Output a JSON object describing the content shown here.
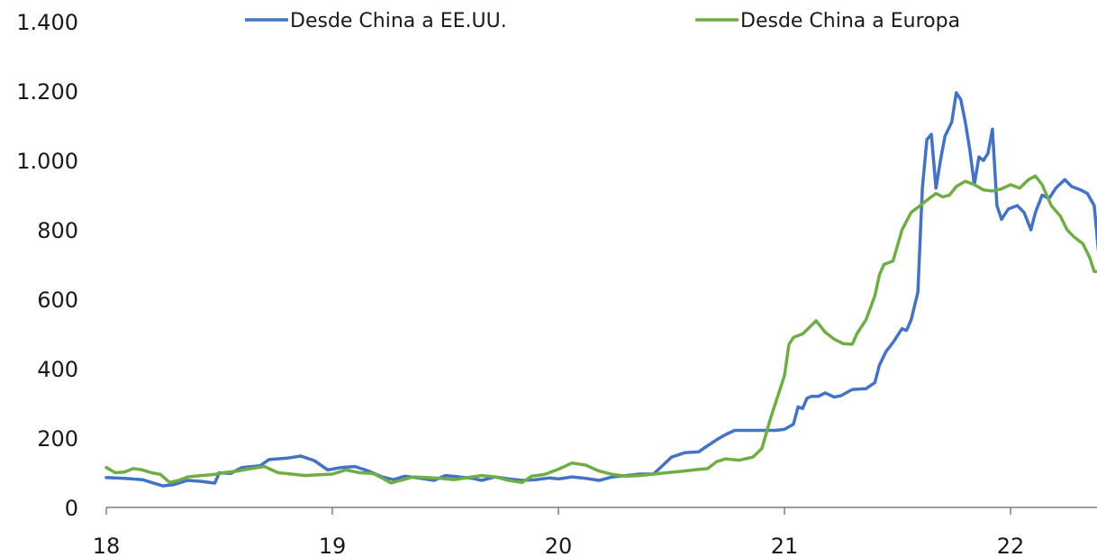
{
  "chart_data": {
    "type": "line",
    "title": "",
    "xlabel": "",
    "ylabel": "",
    "xlim": [
      18,
      22.4
    ],
    "ylim": [
      0,
      1400
    ],
    "x_ticks": [
      18,
      19,
      20,
      21,
      22
    ],
    "x_tick_labels": [
      "18",
      "19",
      "20",
      "21",
      "22"
    ],
    "y_ticks": [
      0,
      200,
      400,
      600,
      800,
      1000,
      1200,
      1400
    ],
    "y_tick_labels": [
      "0",
      "200",
      "400",
      "600",
      "800",
      "1.000",
      "1.200",
      "1.400"
    ],
    "grid": false,
    "legend_position": "top",
    "series": [
      {
        "name": "Desde China a EE.UU.",
        "color": "#4472C4",
        "points": [
          [
            18.0,
            86
          ],
          [
            18.08,
            84
          ],
          [
            18.16,
            80
          ],
          [
            18.22,
            68
          ],
          [
            18.25,
            62
          ],
          [
            18.3,
            66
          ],
          [
            18.36,
            78
          ],
          [
            18.42,
            75
          ],
          [
            18.48,
            70
          ],
          [
            18.5,
            100
          ],
          [
            18.55,
            98
          ],
          [
            18.6,
            115
          ],
          [
            18.68,
            120
          ],
          [
            18.72,
            138
          ],
          [
            18.8,
            142
          ],
          [
            18.86,
            148
          ],
          [
            18.92,
            135
          ],
          [
            18.98,
            108
          ],
          [
            19.04,
            115
          ],
          [
            19.1,
            118
          ],
          [
            19.16,
            105
          ],
          [
            19.22,
            88
          ],
          [
            19.27,
            80
          ],
          [
            19.32,
            90
          ],
          [
            19.38,
            85
          ],
          [
            19.45,
            78
          ],
          [
            19.5,
            92
          ],
          [
            19.56,
            88
          ],
          [
            19.62,
            84
          ],
          [
            19.66,
            78
          ],
          [
            19.72,
            88
          ],
          [
            19.78,
            82
          ],
          [
            19.84,
            78
          ],
          [
            19.9,
            80
          ],
          [
            19.96,
            85
          ],
          [
            20.0,
            82
          ],
          [
            20.06,
            88
          ],
          [
            20.12,
            84
          ],
          [
            20.18,
            78
          ],
          [
            20.24,
            88
          ],
          [
            20.3,
            92
          ],
          [
            20.36,
            96
          ],
          [
            20.42,
            96
          ],
          [
            20.46,
            120
          ],
          [
            20.5,
            145
          ],
          [
            20.56,
            158
          ],
          [
            20.62,
            160
          ],
          [
            20.66,
            178
          ],
          [
            20.7,
            195
          ],
          [
            20.74,
            210
          ],
          [
            20.78,
            222
          ],
          [
            20.84,
            222
          ],
          [
            20.9,
            222
          ],
          [
            20.96,
            222
          ],
          [
            21.0,
            225
          ],
          [
            21.04,
            240
          ],
          [
            21.06,
            290
          ],
          [
            21.08,
            285
          ],
          [
            21.1,
            315
          ],
          [
            21.12,
            320
          ],
          [
            21.15,
            320
          ],
          [
            21.18,
            330
          ],
          [
            21.22,
            318
          ],
          [
            21.25,
            322
          ],
          [
            21.3,
            340
          ],
          [
            21.36,
            342
          ],
          [
            21.4,
            360
          ],
          [
            21.42,
            410
          ],
          [
            21.45,
            450
          ],
          [
            21.48,
            475
          ],
          [
            21.52,
            515
          ],
          [
            21.54,
            510
          ],
          [
            21.56,
            540
          ],
          [
            21.59,
            620
          ],
          [
            21.61,
            920
          ],
          [
            21.63,
            1060
          ],
          [
            21.65,
            1075
          ],
          [
            21.67,
            920
          ],
          [
            21.69,
            1000
          ],
          [
            21.71,
            1070
          ],
          [
            21.74,
            1110
          ],
          [
            21.76,
            1195
          ],
          [
            21.78,
            1175
          ],
          [
            21.8,
            1110
          ],
          [
            21.82,
            1030
          ],
          [
            21.84,
            930
          ],
          [
            21.86,
            1010
          ],
          [
            21.88,
            1000
          ],
          [
            21.9,
            1020
          ],
          [
            21.92,
            1090
          ],
          [
            21.94,
            870
          ],
          [
            21.96,
            830
          ],
          [
            21.99,
            860
          ],
          [
            22.03,
            870
          ],
          [
            22.06,
            850
          ],
          [
            22.09,
            800
          ],
          [
            22.11,
            850
          ],
          [
            22.14,
            900
          ],
          [
            22.17,
            890
          ],
          [
            22.2,
            920
          ],
          [
            22.24,
            945
          ],
          [
            22.27,
            925
          ],
          [
            22.31,
            915
          ],
          [
            22.34,
            905
          ],
          [
            22.37,
            870
          ],
          [
            22.39,
            730
          ],
          [
            22.4,
            800
          ]
        ]
      },
      {
        "name": "Desde China a Europa",
        "color": "#70AD47",
        "points": [
          [
            18.0,
            115
          ],
          [
            18.04,
            100
          ],
          [
            18.08,
            102
          ],
          [
            18.12,
            112
          ],
          [
            18.16,
            108
          ],
          [
            18.2,
            100
          ],
          [
            18.24,
            95
          ],
          [
            18.28,
            72
          ],
          [
            18.32,
            78
          ],
          [
            18.36,
            88
          ],
          [
            18.42,
            92
          ],
          [
            18.48,
            95
          ],
          [
            18.52,
            100
          ],
          [
            18.58,
            105
          ],
          [
            18.64,
            112
          ],
          [
            18.7,
            118
          ],
          [
            18.76,
            100
          ],
          [
            18.82,
            96
          ],
          [
            18.88,
            92
          ],
          [
            18.94,
            94
          ],
          [
            19.0,
            96
          ],
          [
            19.06,
            108
          ],
          [
            19.12,
            100
          ],
          [
            19.18,
            98
          ],
          [
            19.22,
            85
          ],
          [
            19.26,
            70
          ],
          [
            19.3,
            78
          ],
          [
            19.36,
            88
          ],
          [
            19.42,
            86
          ],
          [
            19.48,
            84
          ],
          [
            19.54,
            80
          ],
          [
            19.6,
            86
          ],
          [
            19.66,
            92
          ],
          [
            19.72,
            88
          ],
          [
            19.78,
            78
          ],
          [
            19.84,
            72
          ],
          [
            19.88,
            90
          ],
          [
            19.94,
            95
          ],
          [
            20.0,
            110
          ],
          [
            20.06,
            128
          ],
          [
            20.12,
            122
          ],
          [
            20.18,
            105
          ],
          [
            20.24,
            95
          ],
          [
            20.3,
            90
          ],
          [
            20.36,
            92
          ],
          [
            20.42,
            96
          ],
          [
            20.48,
            100
          ],
          [
            20.54,
            104
          ],
          [
            20.6,
            108
          ],
          [
            20.66,
            112
          ],
          [
            20.7,
            132
          ],
          [
            20.74,
            140
          ],
          [
            20.8,
            136
          ],
          [
            20.86,
            145
          ],
          [
            20.9,
            170
          ],
          [
            20.94,
            260
          ],
          [
            20.98,
            340
          ],
          [
            21.0,
            380
          ],
          [
            21.02,
            470
          ],
          [
            21.04,
            490
          ],
          [
            21.08,
            500
          ],
          [
            21.12,
            525
          ],
          [
            21.14,
            538
          ],
          [
            21.18,
            505
          ],
          [
            21.22,
            485
          ],
          [
            21.26,
            472
          ],
          [
            21.3,
            470
          ],
          [
            21.32,
            500
          ],
          [
            21.36,
            540
          ],
          [
            21.4,
            610
          ],
          [
            21.42,
            670
          ],
          [
            21.44,
            700
          ],
          [
            21.48,
            710
          ],
          [
            21.52,
            800
          ],
          [
            21.56,
            850
          ],
          [
            21.6,
            870
          ],
          [
            21.64,
            890
          ],
          [
            21.67,
            905
          ],
          [
            21.7,
            895
          ],
          [
            21.73,
            900
          ],
          [
            21.76,
            925
          ],
          [
            21.8,
            940
          ],
          [
            21.84,
            930
          ],
          [
            21.88,
            915
          ],
          [
            21.92,
            912
          ],
          [
            21.96,
            918
          ],
          [
            22.0,
            930
          ],
          [
            22.04,
            920
          ],
          [
            22.08,
            945
          ],
          [
            22.11,
            955
          ],
          [
            22.14,
            930
          ],
          [
            22.18,
            870
          ],
          [
            22.22,
            840
          ],
          [
            22.25,
            800
          ],
          [
            22.28,
            780
          ],
          [
            22.32,
            760
          ],
          [
            22.35,
            720
          ],
          [
            22.37,
            680
          ],
          [
            22.4,
            680
          ]
        ]
      }
    ]
  }
}
